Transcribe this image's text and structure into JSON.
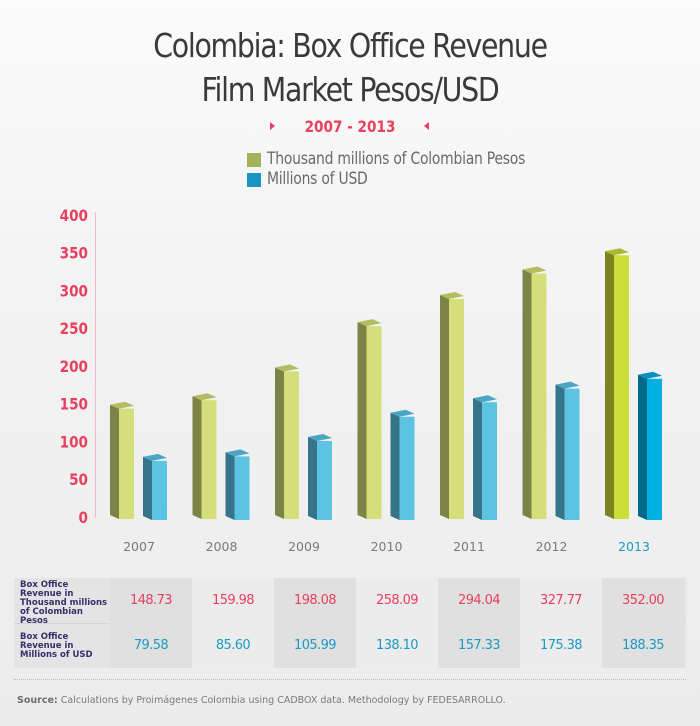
{
  "header": {
    "title_line1": "Colombia: Box Office Revenue",
    "title_line2": "Film Market Pesos/USD",
    "subtitle": "2007 - 2013"
  },
  "colors": {
    "pesos": "#a6b455",
    "usd": "#1994c4",
    "axis_labels": "#e8405f",
    "highlight_year": "#1a9ac4"
  },
  "legend": [
    {
      "label": "Thousand millions of Colombian Pesos",
      "color": "#a4b25a"
    },
    {
      "label": "Millions of USD",
      "color": "#1b95c2"
    }
  ],
  "chart_data": {
    "type": "bar",
    "title": "Colombia: Box Office Revenue Film Market Pesos/USD",
    "subtitle": "2007 - 2013",
    "categories": [
      "2007",
      "2008",
      "2009",
      "2010",
      "2011",
      "2012",
      "2013"
    ],
    "series": [
      {
        "name": "Thousand millions of Colombian Pesos",
        "values": [
          148.73,
          159.98,
          198.08,
          258.09,
          294.04,
          327.77,
          352.0
        ]
      },
      {
        "name": "Millions of USD",
        "values": [
          79.58,
          85.6,
          105.99,
          138.1,
          157.33,
          175.38,
          188.35
        ]
      }
    ],
    "yticks": [
      "0",
      "50",
      "100",
      "150",
      "200",
      "250",
      "300",
      "350",
      "400"
    ],
    "ylim": [
      0,
      400
    ],
    "xlabel": "",
    "ylabel": "",
    "legend_position": "top-center",
    "highlighted_category": "2013"
  },
  "table": {
    "row_labels": [
      "Box Office Revenue in Thousand millions of Colombian Pesos",
      "Box Office Revenue in Millions of USD"
    ],
    "pesos": [
      "148.73",
      "159.98",
      "198.08",
      "258.09",
      "294.04",
      "327.77",
      "352.00"
    ],
    "usd": [
      "79.58",
      "85.60",
      "105.99",
      "138.10",
      "157.33",
      "175.38",
      "188.35"
    ]
  },
  "source": {
    "label": "Source:",
    "text": " Calculations by Proimágenes Colombia using CADBOX data. Methodology by FEDESARROLLO."
  }
}
